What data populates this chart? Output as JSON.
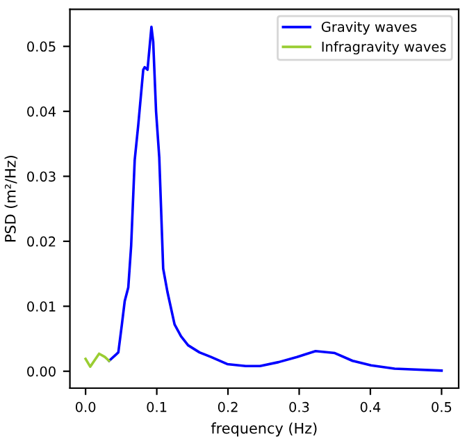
{
  "chart_data": {
    "type": "line",
    "xlabel": "frequency (Hz)",
    "ylabel": "PSD (m²/Hz)",
    "xlim": [
      -0.022,
      0.524
    ],
    "ylim": [
      -0.0026,
      0.0557
    ],
    "xticks": [
      {
        "value": 0,
        "label": "0.0"
      },
      {
        "value": 0.1,
        "label": "0.1"
      },
      {
        "value": 0.2,
        "label": "0.2"
      },
      {
        "value": 0.3,
        "label": "0.3"
      },
      {
        "value": 0.4,
        "label": "0.4"
      },
      {
        "value": 0.5,
        "label": "0.5"
      }
    ],
    "yticks": [
      {
        "value": 0,
        "label": "0.00"
      },
      {
        "value": 0.01,
        "label": "0.01"
      },
      {
        "value": 0.02,
        "label": "0.02"
      },
      {
        "value": 0.03,
        "label": "0.03"
      },
      {
        "value": 0.04,
        "label": "0.04"
      },
      {
        "value": 0.05,
        "label": "0.05"
      }
    ],
    "legend": "top right",
    "grid": false,
    "series": [
      {
        "name": "Gravity waves",
        "color": "#0000ff",
        "x": [
          0.033,
          0.041,
          0.046,
          0.051,
          0.055,
          0.06,
          0.064,
          0.069,
          0.074,
          0.081,
          0.083,
          0.087,
          0.09,
          0.0925,
          0.095,
          0.099,
          0.1035,
          0.109,
          0.115,
          0.125,
          0.134,
          0.144,
          0.16,
          0.176,
          0.199,
          0.225,
          0.245,
          0.271,
          0.297,
          0.323,
          0.35,
          0.375,
          0.401,
          0.434,
          0.5
        ],
        "values": [
          0.0016,
          0.0024,
          0.0029,
          0.0072,
          0.0108,
          0.0129,
          0.0193,
          0.0325,
          0.0379,
          0.0464,
          0.0468,
          0.0464,
          0.05,
          0.053,
          0.0507,
          0.04,
          0.0329,
          0.0158,
          0.0122,
          0.0072,
          0.0054,
          0.004,
          0.0029,
          0.0022,
          0.0011,
          0.0008,
          0.0008,
          0.0014,
          0.0022,
          0.0031,
          0.0028,
          0.0016,
          0.0009,
          0.0004,
          0.0001
        ]
      },
      {
        "name": "Infragravity waves",
        "color": "#9acd32",
        "x": [
          0.0,
          0.0065,
          0.019,
          0.027,
          0.033
        ],
        "values": [
          0.0019,
          0.0007,
          0.0027,
          0.0022,
          0.0016
        ]
      }
    ]
  }
}
